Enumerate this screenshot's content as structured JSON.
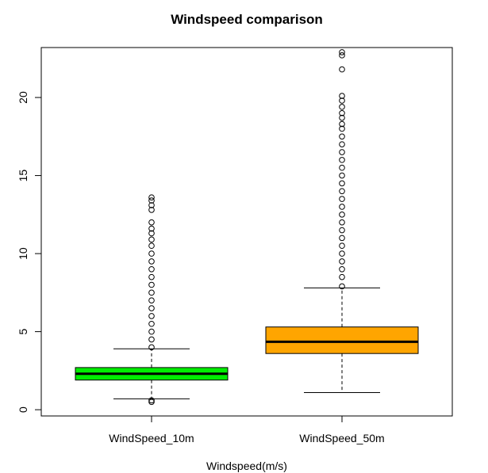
{
  "chart_data": {
    "type": "boxplot",
    "title": "Windspeed comparison",
    "xlabel": "Windspeed(m/s)",
    "ylabel": "",
    "ylim": [
      -0.4,
      23.2
    ],
    "yticks": [
      0,
      5,
      10,
      15,
      20
    ],
    "grid": false,
    "series": [
      {
        "name": "WindSpeed_10m",
        "color": "#00ee00",
        "whisker_low": 0.7,
        "q1": 1.9,
        "median": 2.3,
        "q3": 2.7,
        "whisker_high": 3.9,
        "outliers": [
          0.5,
          0.6,
          4.0,
          4.5,
          5.0,
          5.5,
          6.0,
          6.5,
          7.0,
          7.5,
          8.0,
          8.5,
          9.0,
          9.5,
          10.0,
          10.5,
          10.9,
          11.3,
          11.6,
          12.0,
          12.8,
          13.1,
          13.4,
          13.6
        ]
      },
      {
        "name": "WindSpeed_50m",
        "color": "#ffa500",
        "whisker_low": 1.1,
        "q1": 3.6,
        "median": 4.35,
        "q3": 5.3,
        "whisker_high": 7.8,
        "outliers": [
          7.9,
          8.5,
          9.0,
          9.5,
          10.0,
          10.5,
          11.0,
          11.5,
          12.0,
          12.5,
          13.0,
          13.5,
          14.0,
          14.5,
          15.0,
          15.5,
          16.0,
          16.5,
          17.0,
          17.5,
          18.0,
          18.3,
          18.7,
          19.0,
          19.4,
          19.8,
          20.1,
          21.8,
          22.7,
          22.9
        ]
      }
    ]
  }
}
